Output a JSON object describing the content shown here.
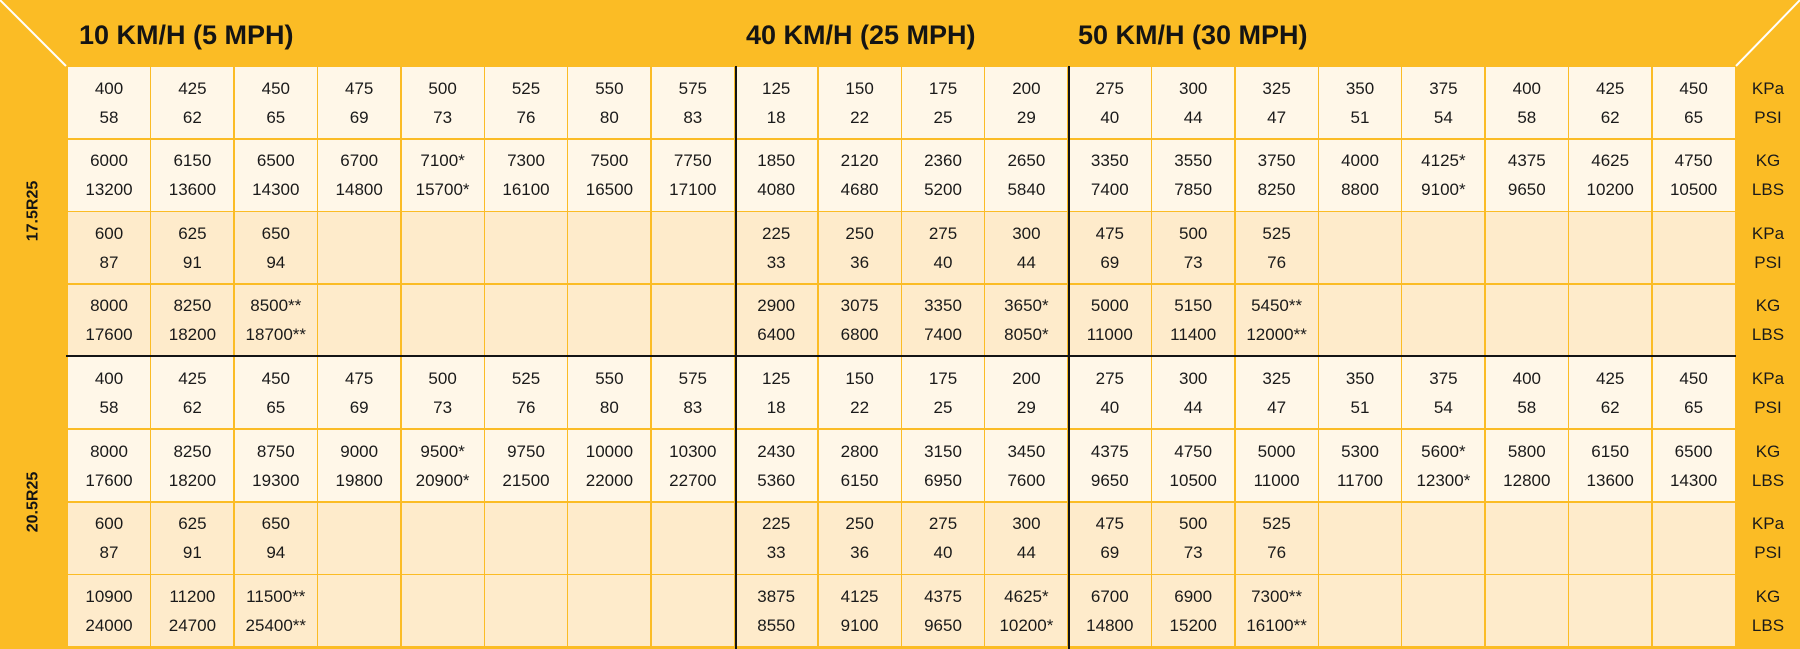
{
  "colors": {
    "accent": "#fbbc25",
    "cell_light": "#fff7e8",
    "cell_dark": "#feebcb",
    "text": "#1a1a1a"
  },
  "sections": [
    {
      "title": "10 KM/H (5 MPH)",
      "columns": 8
    },
    {
      "title": "40 KM/H (25 MPH)",
      "columns": 4
    },
    {
      "title": "50 KM/H (30 MPH)",
      "columns": 8
    }
  ],
  "tires": [
    {
      "size": "17.5R25",
      "rows": [
        {
          "units": [
            "KPa",
            "PSI"
          ],
          "cells": [
            [
              "400",
              "58"
            ],
            [
              "425",
              "62"
            ],
            [
              "450",
              "65"
            ],
            [
              "475",
              "69"
            ],
            [
              "500",
              "73"
            ],
            [
              "525",
              "76"
            ],
            [
              "550",
              "80"
            ],
            [
              "575",
              "83"
            ],
            [
              "125",
              "18"
            ],
            [
              "150",
              "22"
            ],
            [
              "175",
              "25"
            ],
            [
              "200",
              "29"
            ],
            [
              "275",
              "40"
            ],
            [
              "300",
              "44"
            ],
            [
              "325",
              "47"
            ],
            [
              "350",
              "51"
            ],
            [
              "375",
              "54"
            ],
            [
              "400",
              "58"
            ],
            [
              "425",
              "62"
            ],
            [
              "450",
              "65"
            ]
          ]
        },
        {
          "units": [
            "KG",
            "LBS"
          ],
          "cells": [
            [
              "6000",
              "13200"
            ],
            [
              "6150",
              "13600"
            ],
            [
              "6500",
              "14300"
            ],
            [
              "6700",
              "14800"
            ],
            [
              "7100*",
              "15700*"
            ],
            [
              "7300",
              "16100"
            ],
            [
              "7500",
              "16500"
            ],
            [
              "7750",
              "17100"
            ],
            [
              "1850",
              "4080"
            ],
            [
              "2120",
              "4680"
            ],
            [
              "2360",
              "5200"
            ],
            [
              "2650",
              "5840"
            ],
            [
              "3350",
              "7400"
            ],
            [
              "3550",
              "7850"
            ],
            [
              "3750",
              "8250"
            ],
            [
              "4000",
              "8800"
            ],
            [
              "4125*",
              "9100*"
            ],
            [
              "4375",
              "9650"
            ],
            [
              "4625",
              "10200"
            ],
            [
              "4750",
              "10500"
            ]
          ]
        },
        {
          "units": [
            "KPa",
            "PSI"
          ],
          "cells": [
            [
              "600",
              "87"
            ],
            [
              "625",
              "91"
            ],
            [
              "650",
              "94"
            ],
            [
              "",
              ""
            ],
            [
              "",
              ""
            ],
            [
              "",
              ""
            ],
            [
              "",
              ""
            ],
            [
              "",
              ""
            ],
            [
              "225",
              "33"
            ],
            [
              "250",
              "36"
            ],
            [
              "275",
              "40"
            ],
            [
              "300",
              "44"
            ],
            [
              "475",
              "69"
            ],
            [
              "500",
              "73"
            ],
            [
              "525",
              "76"
            ],
            [
              "",
              ""
            ],
            [
              "",
              ""
            ],
            [
              "",
              ""
            ],
            [
              "",
              ""
            ],
            [
              "",
              ""
            ]
          ]
        },
        {
          "units": [
            "KG",
            "LBS"
          ],
          "cells": [
            [
              "8000",
              "17600"
            ],
            [
              "8250",
              "18200"
            ],
            [
              "8500**",
              "18700**"
            ],
            [
              "",
              ""
            ],
            [
              "",
              ""
            ],
            [
              "",
              ""
            ],
            [
              "",
              ""
            ],
            [
              "",
              ""
            ],
            [
              "2900",
              "6400"
            ],
            [
              "3075",
              "6800"
            ],
            [
              "3350",
              "7400"
            ],
            [
              "3650*",
              "8050*"
            ],
            [
              "5000",
              "11000"
            ],
            [
              "5150",
              "11400"
            ],
            [
              "5450**",
              "12000**"
            ],
            [
              "",
              ""
            ],
            [
              "",
              ""
            ],
            [
              "",
              ""
            ],
            [
              "",
              ""
            ],
            [
              "",
              ""
            ]
          ]
        }
      ]
    },
    {
      "size": "20.5R25",
      "rows": [
        {
          "units": [
            "KPa",
            "PSI"
          ],
          "cells": [
            [
              "400",
              "58"
            ],
            [
              "425",
              "62"
            ],
            [
              "450",
              "65"
            ],
            [
              "475",
              "69"
            ],
            [
              "500",
              "73"
            ],
            [
              "525",
              "76"
            ],
            [
              "550",
              "80"
            ],
            [
              "575",
              "83"
            ],
            [
              "125",
              "18"
            ],
            [
              "150",
              "22"
            ],
            [
              "175",
              "25"
            ],
            [
              "200",
              "29"
            ],
            [
              "275",
              "40"
            ],
            [
              "300",
              "44"
            ],
            [
              "325",
              "47"
            ],
            [
              "350",
              "51"
            ],
            [
              "375",
              "54"
            ],
            [
              "400",
              "58"
            ],
            [
              "425",
              "62"
            ],
            [
              "450",
              "65"
            ]
          ]
        },
        {
          "units": [
            "KG",
            "LBS"
          ],
          "cells": [
            [
              "8000",
              "17600"
            ],
            [
              "8250",
              "18200"
            ],
            [
              "8750",
              "19300"
            ],
            [
              "9000",
              "19800"
            ],
            [
              "9500*",
              "20900*"
            ],
            [
              "9750",
              "21500"
            ],
            [
              "10000",
              "22000"
            ],
            [
              "10300",
              "22700"
            ],
            [
              "2430",
              "5360"
            ],
            [
              "2800",
              "6150"
            ],
            [
              "3150",
              "6950"
            ],
            [
              "3450",
              "7600"
            ],
            [
              "4375",
              "9650"
            ],
            [
              "4750",
              "10500"
            ],
            [
              "5000",
              "11000"
            ],
            [
              "5300",
              "11700"
            ],
            [
              "5600*",
              "12300*"
            ],
            [
              "5800",
              "12800"
            ],
            [
              "6150",
              "13600"
            ],
            [
              "6500",
              "14300"
            ]
          ]
        },
        {
          "units": [
            "KPa",
            "PSI"
          ],
          "cells": [
            [
              "600",
              "87"
            ],
            [
              "625",
              "91"
            ],
            [
              "650",
              "94"
            ],
            [
              "",
              ""
            ],
            [
              "",
              ""
            ],
            [
              "",
              ""
            ],
            [
              "",
              ""
            ],
            [
              "",
              ""
            ],
            [
              "225",
              "33"
            ],
            [
              "250",
              "36"
            ],
            [
              "275",
              "40"
            ],
            [
              "300",
              "44"
            ],
            [
              "475",
              "69"
            ],
            [
              "500",
              "73"
            ],
            [
              "525",
              "76"
            ],
            [
              "",
              ""
            ],
            [
              "",
              ""
            ],
            [
              "",
              ""
            ],
            [
              "",
              ""
            ],
            [
              "",
              ""
            ]
          ]
        },
        {
          "units": [
            "KG",
            "LBS"
          ],
          "cells": [
            [
              "10900",
              "24000"
            ],
            [
              "11200",
              "24700"
            ],
            [
              "11500**",
              "25400**"
            ],
            [
              "",
              ""
            ],
            [
              "",
              ""
            ],
            [
              "",
              ""
            ],
            [
              "",
              ""
            ],
            [
              "",
              ""
            ],
            [
              "3875",
              "8550"
            ],
            [
              "4125",
              "9100"
            ],
            [
              "4375",
              "9650"
            ],
            [
              "4625*",
              "10200*"
            ],
            [
              "6700",
              "14800"
            ],
            [
              "6900",
              "15200"
            ],
            [
              "7300**",
              "16100**"
            ],
            [
              "",
              ""
            ],
            [
              "",
              ""
            ],
            [
              "",
              ""
            ],
            [
              "",
              ""
            ],
            [
              "",
              ""
            ]
          ]
        }
      ]
    }
  ]
}
